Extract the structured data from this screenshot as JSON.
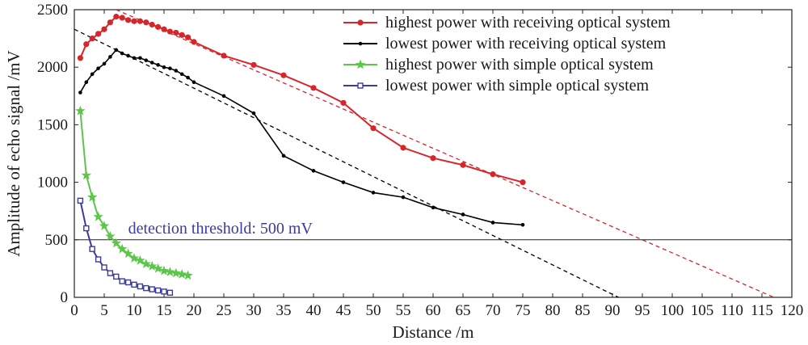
{
  "chart_data": {
    "type": "line",
    "title": "",
    "xlabel": "Distance /m",
    "ylabel": "Amplitude of echo signal /mV",
    "xlim": [
      0,
      120
    ],
    "ylim": [
      0,
      2500
    ],
    "xticks": [
      0,
      5,
      10,
      15,
      20,
      25,
      30,
      35,
      40,
      45,
      50,
      55,
      60,
      65,
      70,
      75,
      80,
      85,
      90,
      95,
      100,
      105,
      110,
      115,
      120
    ],
    "yticks": [
      0,
      500,
      1000,
      1500,
      2000,
      2500
    ],
    "grid": false,
    "legend_position": "top-right",
    "series": [
      {
        "name": "highest power with receiving optical system",
        "color": "#d7262b",
        "marker": "circle",
        "x": [
          1,
          2,
          3,
          4,
          5,
          6,
          7,
          8,
          9,
          10,
          11,
          12,
          13,
          14,
          15,
          16,
          17,
          18,
          19,
          20,
          25,
          30,
          35,
          40,
          45,
          50,
          55,
          60,
          65,
          70,
          75
        ],
        "y": [
          2080,
          2200,
          2250,
          2290,
          2330,
          2390,
          2440,
          2430,
          2410,
          2400,
          2400,
          2390,
          2370,
          2350,
          2330,
          2310,
          2300,
          2280,
          2260,
          2220,
          2100,
          2020,
          1930,
          1820,
          1690,
          1470,
          1300,
          1210,
          1150,
          1070,
          1000
        ]
      },
      {
        "name": "lowest power with receiving optical system",
        "color": "#000000",
        "marker": "dot",
        "x": [
          1,
          2,
          3,
          4,
          5,
          6,
          7,
          8,
          9,
          10,
          11,
          12,
          13,
          14,
          15,
          16,
          17,
          18,
          19,
          20,
          25,
          30,
          35,
          40,
          45,
          50,
          55,
          60,
          65,
          70,
          75
        ],
        "y": [
          1780,
          1870,
          1940,
          1990,
          2030,
          2090,
          2150,
          2120,
          2100,
          2080,
          2080,
          2060,
          2040,
          2020,
          2000,
          1990,
          1970,
          1940,
          1910,
          1870,
          1750,
          1600,
          1230,
          1100,
          1000,
          910,
          870,
          780,
          720,
          650,
          630
        ]
      },
      {
        "name": "highest power with simple optical system",
        "color": "#5cc54a",
        "marker": "star",
        "x": [
          1,
          2,
          3,
          4,
          5,
          6,
          7,
          8,
          9,
          10,
          11,
          12,
          13,
          14,
          15,
          16,
          17,
          18,
          19
        ],
        "y": [
          1620,
          1060,
          870,
          700,
          620,
          530,
          470,
          420,
          380,
          340,
          320,
          290,
          270,
          250,
          230,
          220,
          210,
          200,
          190
        ]
      },
      {
        "name": "lowest power with simple optical system",
        "color": "#3a3aa0",
        "marker": "square",
        "x": [
          1,
          2,
          3,
          4,
          5,
          6,
          7,
          8,
          9,
          10,
          11,
          12,
          13,
          14,
          15,
          16
        ],
        "y": [
          840,
          600,
          420,
          330,
          260,
          210,
          180,
          140,
          130,
          110,
          95,
          80,
          70,
          60,
          50,
          40
        ]
      }
    ],
    "trend_lines": [
      {
        "color": "#d7262b",
        "dash": true,
        "x": [
          7,
          117
        ],
        "y": [
          2500,
          0
        ]
      },
      {
        "color": "#000000",
        "dash": true,
        "x": [
          0,
          91
        ],
        "y": [
          2330,
          0
        ]
      }
    ],
    "threshold": {
      "value": 500,
      "label": "detection threshold: 500 mV",
      "color": "#3a3aa0"
    }
  }
}
